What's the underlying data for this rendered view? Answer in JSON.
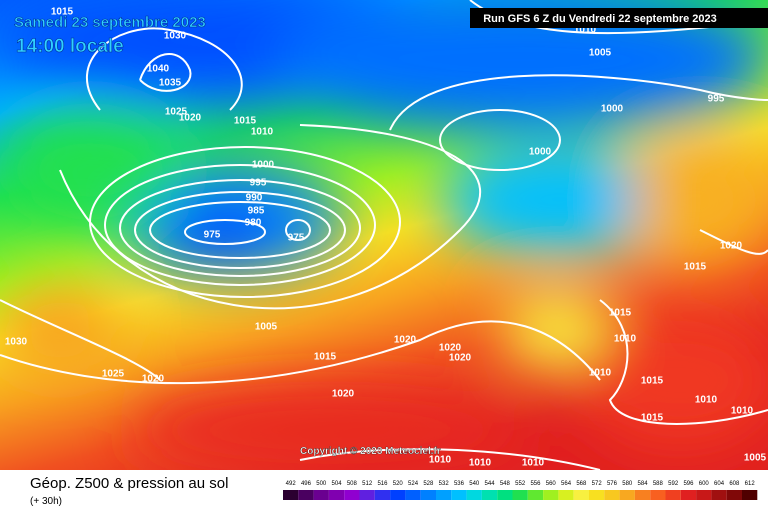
{
  "header": {
    "run": "Run GFS 6 Z du Vendredi 22 septembre 2023",
    "date": "Samedi 23 septembre 2023",
    "time": "14:00 locale"
  },
  "copyright": "Copyright © 2023 Meteociel.fr",
  "isobars": [
    "1015",
    "1030",
    "1040",
    "1035",
    "1025",
    "1020",
    "1015",
    "1010",
    "1000",
    "995",
    "990",
    "985",
    "980",
    "975",
    "975",
    "1010",
    "1005",
    "1000",
    "995",
    "1000",
    "1020",
    "1015",
    "1015",
    "1010",
    "1010",
    "1015",
    "1015",
    "1010",
    "1010",
    "1005",
    "1015",
    "1020",
    "1020",
    "1020",
    "1025",
    "1020",
    "1020",
    "1030",
    "1010",
    "1010",
    "1010",
    "1005"
  ],
  "footer": {
    "title": "Géop. Z500 & pression au sol",
    "lead": "(+ 30h)"
  },
  "scale": {
    "labels": [
      492,
      496,
      500,
      504,
      508,
      512,
      516,
      520,
      524,
      528,
      532,
      536,
      540,
      544,
      548,
      552,
      556,
      560,
      564,
      568,
      572,
      576,
      580,
      584,
      588,
      592,
      596,
      600,
      604,
      608,
      612
    ],
    "colors": [
      "#2b0030",
      "#4a0060",
      "#6a0090",
      "#8000b0",
      "#9000d0",
      "#6020e0",
      "#3030f0",
      "#0040ff",
      "#0060ff",
      "#0080ff",
      "#00a0ff",
      "#00c0ff",
      "#00d8e0",
      "#00e0b0",
      "#00e080",
      "#20e050",
      "#60e830",
      "#a0f020",
      "#d8f020",
      "#f8f040",
      "#f8e020",
      "#f8c820",
      "#f8a820",
      "#f88020",
      "#f86020",
      "#f04020",
      "#e02020",
      "#c81818",
      "#a01010",
      "#800808",
      "#500000"
    ]
  }
}
